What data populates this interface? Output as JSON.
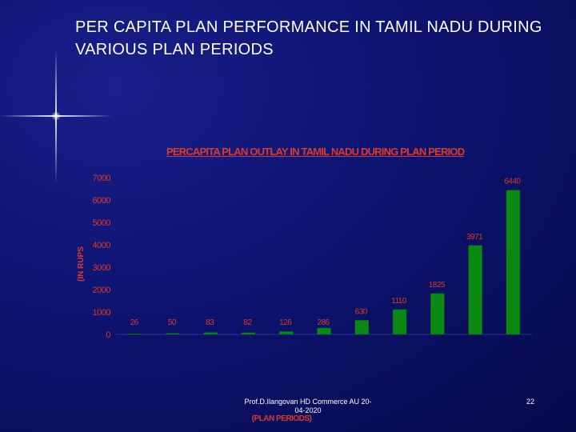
{
  "slide": {
    "title": "PER CAPITA PLAN PERFORMANCE IN TAMIL NADU DURING VARIOUS PLAN PERIODS",
    "footer": "Prof.D.Ilangovan HD Commerce AU 20-04-2020",
    "slide_number": "22"
  },
  "colors": {
    "bar": "#0a8a12",
    "bar_edge": "#0a5a0e",
    "axis_text": "#d93a2b",
    "background": "#0d1370"
  },
  "chart_data": {
    "type": "bar",
    "title": "PERCAPITA PLAN OUTLAY IN TAMIL NADU DURING PLAN PERIOD",
    "ylabel": "(IN RUPS",
    "xlabel": "(PLAN PERIODS)",
    "ylim": [
      0,
      7000
    ],
    "yticks": [
      "7000",
      "6000",
      "5000",
      "4000",
      "3000",
      "2000",
      "1000",
      "0"
    ],
    "grid": false,
    "categories": [
      "",
      "",
      "",
      "",
      "",
      "",
      "",
      "",
      "",
      "",
      ""
    ],
    "values": [
      26,
      50,
      83,
      82,
      126,
      286,
      630,
      1110,
      1825,
      3971,
      6440
    ],
    "data_labels": [
      "26",
      "50",
      "83",
      "82",
      "126",
      "286",
      "630",
      "1110",
      "1825",
      "3971",
      "6440"
    ]
  }
}
